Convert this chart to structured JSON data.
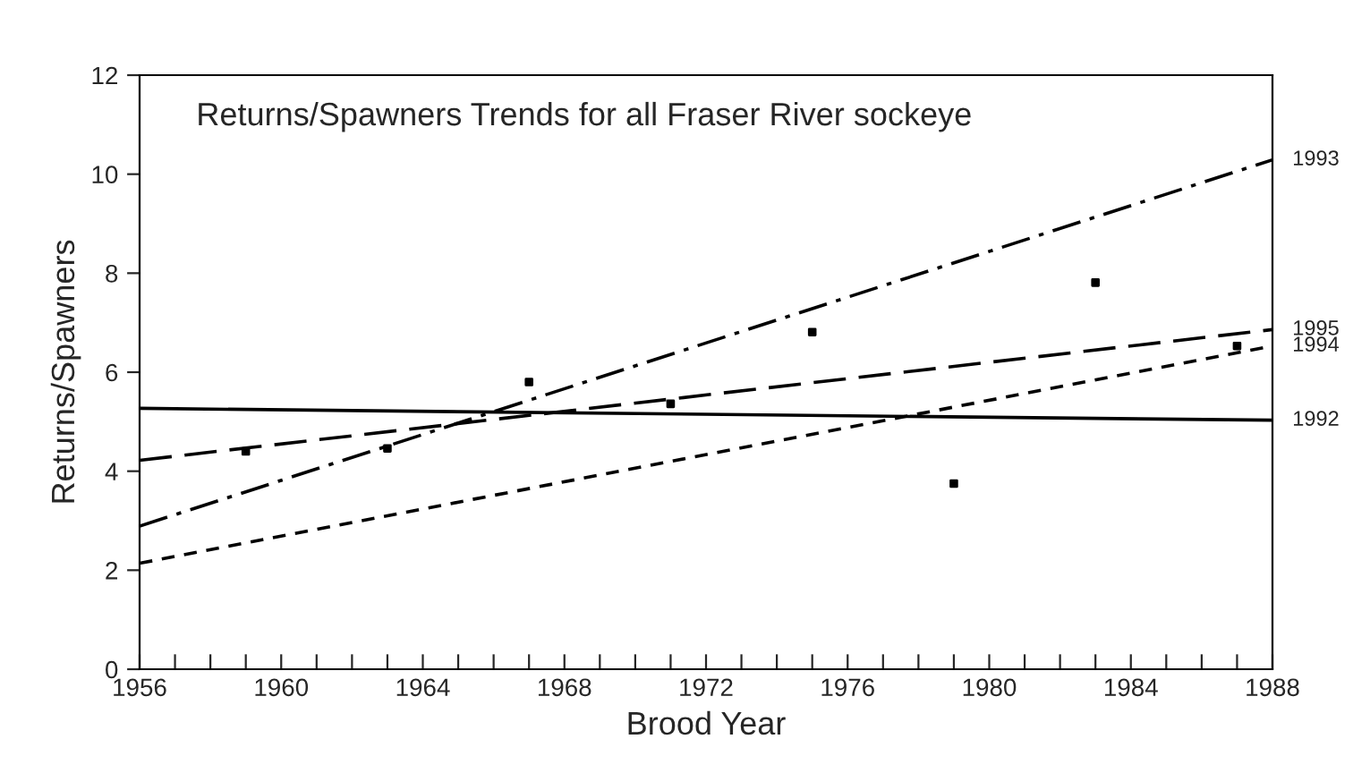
{
  "chart_data": {
    "type": "line",
    "title": "Returns/Spawners Trends for all Fraser River sockeye",
    "xlabel": "Brood Year",
    "ylabel": "Returns/Spawners",
    "xlim": [
      1956,
      1988
    ],
    "ylim": [
      0,
      12
    ],
    "xticks": [
      1956,
      {
        "value": 1957,
        "label": null
      },
      {
        "value": 1958,
        "label": null
      },
      {
        "value": 1959,
        "label": null
      },
      1960,
      {
        "value": 1961,
        "label": null
      },
      {
        "value": 1962,
        "label": null
      },
      {
        "value": 1963,
        "label": null
      },
      1964,
      {
        "value": 1965,
        "label": null
      },
      {
        "value": 1966,
        "label": null
      },
      {
        "value": 1967,
        "label": null
      },
      1968,
      {
        "value": 1969,
        "label": null
      },
      {
        "value": 1970,
        "label": null
      },
      {
        "value": 1971,
        "label": null
      },
      1972,
      {
        "value": 1973,
        "label": null
      },
      {
        "value": 1974,
        "label": null
      },
      {
        "value": 1975,
        "label": null
      },
      1976,
      {
        "value": 1977,
        "label": null
      },
      {
        "value": 1978,
        "label": null
      },
      {
        "value": 1979,
        "label": null
      },
      1980,
      {
        "value": 1981,
        "label": null
      },
      {
        "value": 1982,
        "label": null
      },
      {
        "value": 1983,
        "label": null
      },
      1984,
      {
        "value": 1985,
        "label": null
      },
      {
        "value": 1986,
        "label": null
      },
      {
        "value": 1987,
        "label": null
      },
      1988
    ],
    "yticks": [
      0,
      2,
      4,
      6,
      8,
      10,
      12
    ],
    "grid": false,
    "legend": false,
    "series": [
      {
        "name": "1993",
        "line_style": "dashdot",
        "color": "#000000",
        "x": [
          1956,
          1988
        ],
        "values": [
          2.89,
          10.29
        ]
      },
      {
        "name": "1995",
        "line_style": "longdash",
        "color": "#000000",
        "x": [
          1956,
          1988
        ],
        "values": [
          4.22,
          6.86
        ]
      },
      {
        "name": "1994",
        "line_style": "dashed",
        "color": "#000000",
        "x": [
          1956,
          1988
        ],
        "values": [
          2.14,
          6.53
        ]
      },
      {
        "name": "1992",
        "line_style": "solid",
        "color": "#000000",
        "x": [
          1956,
          1988
        ],
        "values": [
          5.27,
          5.03
        ]
      },
      {
        "type": "scatter",
        "marker": "square",
        "color": "#000000",
        "x": [
          1959,
          1963,
          1967,
          1971,
          1975,
          1979,
          1983,
          1987
        ],
        "values": [
          4.4,
          4.46,
          5.8,
          5.36,
          6.81,
          3.75,
          7.81,
          6.53
        ]
      }
    ]
  }
}
